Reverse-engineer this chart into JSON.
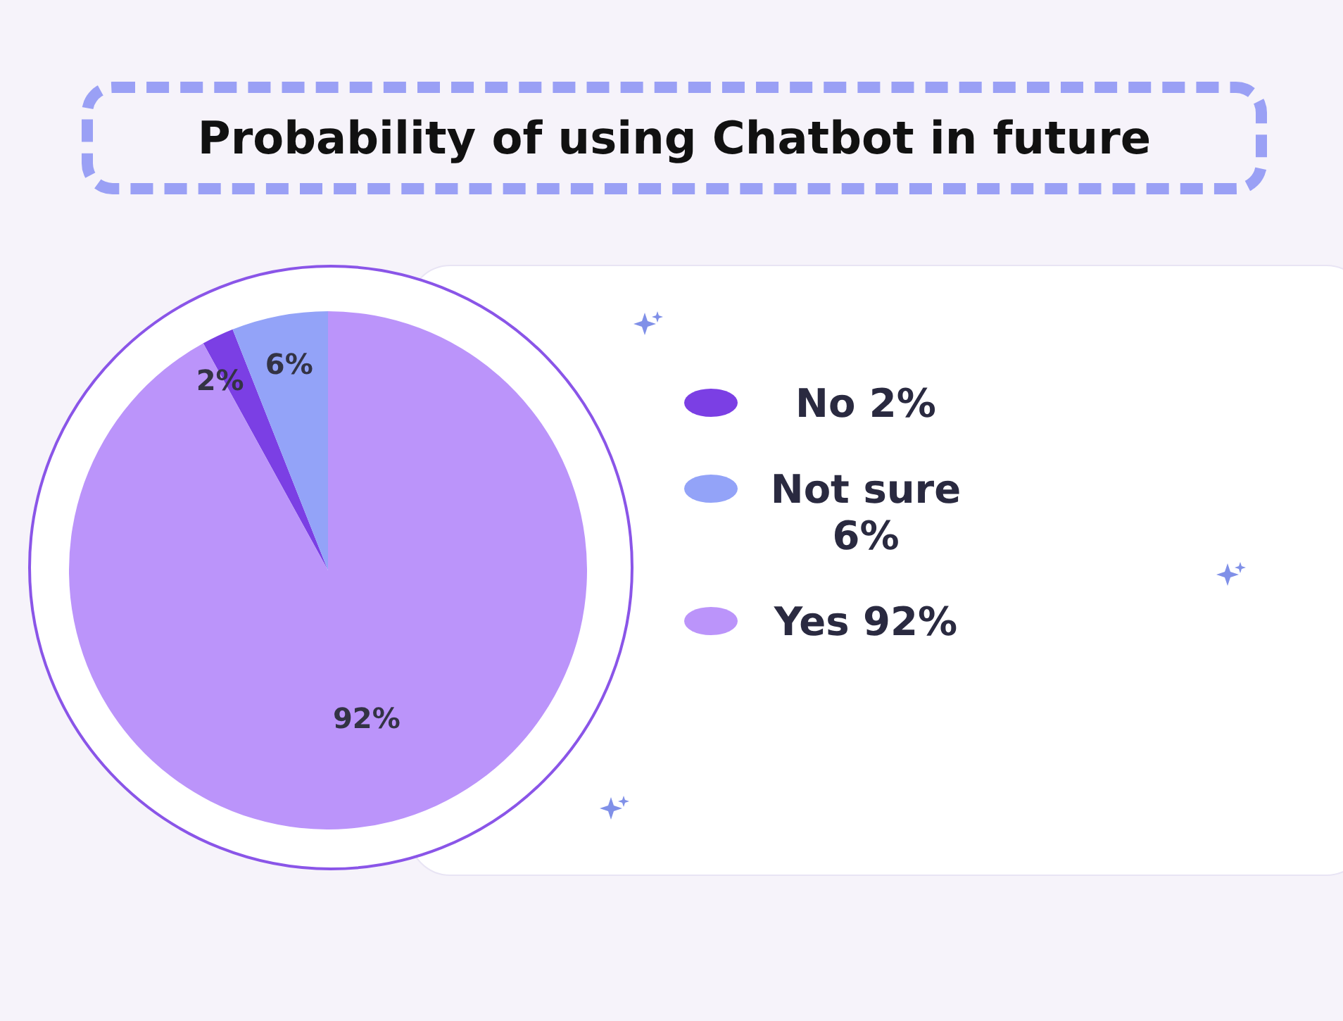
{
  "chart_data": {
    "type": "pie",
    "title": "Probability of using Chatbot in future",
    "categories": [
      "No 2%",
      "Not sure 6%",
      "Yes 92%"
    ],
    "values": [
      2,
      6,
      92
    ],
    "colors": [
      "#7b3fe4",
      "#93a3f8",
      "#bb94fa"
    ],
    "value_labels": [
      "2%",
      "6%",
      "92%"
    ],
    "legend": "right"
  }
}
